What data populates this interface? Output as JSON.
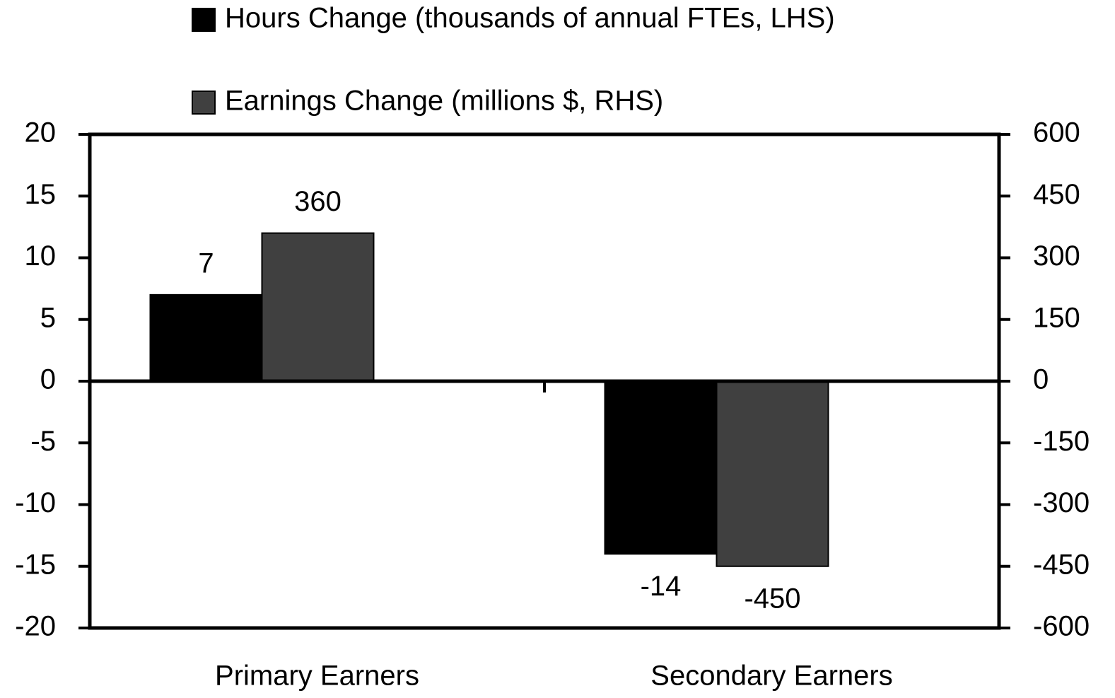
{
  "chart_data": {
    "type": "bar",
    "categories": [
      "Primary Earners",
      "Secondary Earners"
    ],
    "series": [
      {
        "name": "Hours Change (thousands of annual FTEs, LHS)",
        "color": "#000000",
        "values": [
          7,
          -14
        ]
      },
      {
        "name": "Earnings Change (millions $, RHS)",
        "color": "#404040",
        "values": [
          360,
          -450
        ],
        "axis": "y2"
      }
    ],
    "ylim": [
      -20,
      20
    ],
    "yticks": [
      -20,
      -15,
      -10,
      -5,
      0,
      5,
      10,
      15,
      20
    ],
    "y2lim": [
      -600,
      600
    ],
    "y2ticks": [
      -600,
      -450,
      -300,
      -150,
      0,
      150,
      300,
      450,
      600
    ],
    "grid": false,
    "legend": "top"
  }
}
